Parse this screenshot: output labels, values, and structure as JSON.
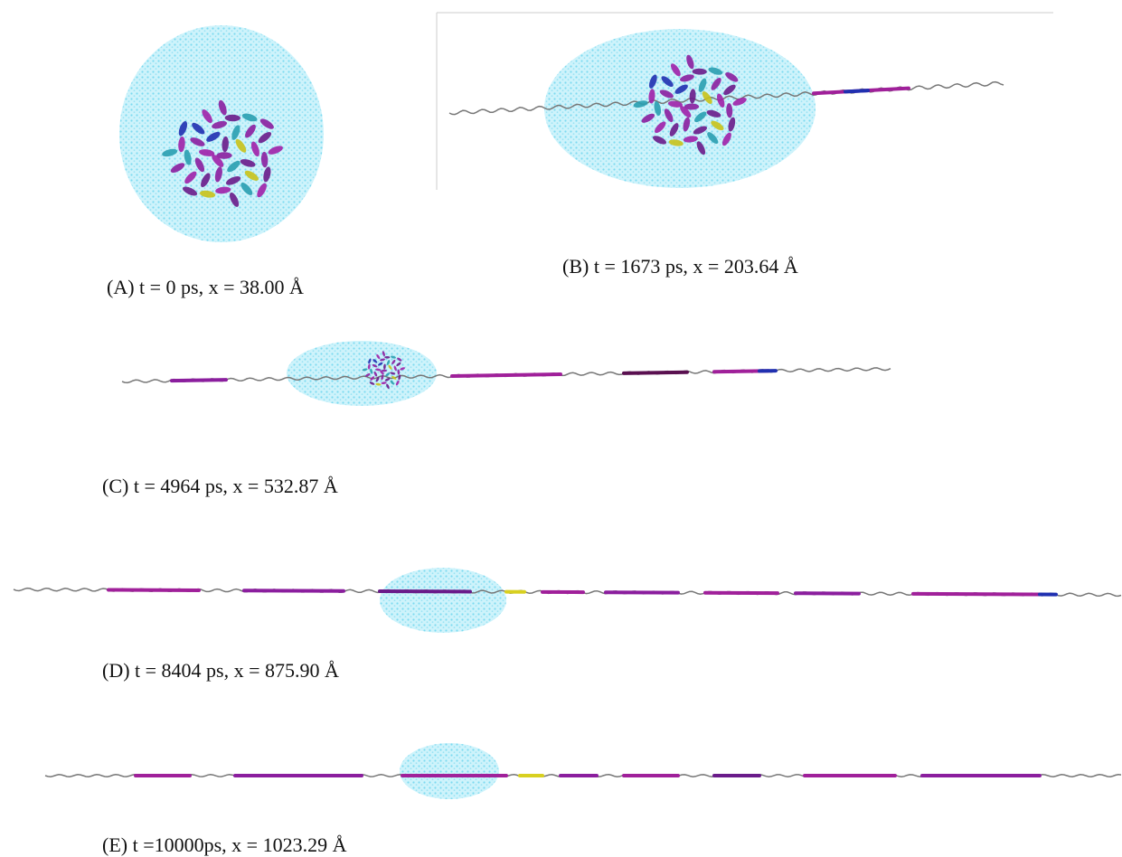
{
  "panels": [
    {
      "caption": "(A) t = 0 ps, x = 38.00 Å"
    },
    {
      "caption": "(B) t = 1673 ps, x = 203.64 Å"
    },
    {
      "caption": "(C) t = 4964 ps, x = 532.87 Å"
    },
    {
      "caption": "(D) t = 8404 ps, x = 875.90 Å"
    },
    {
      "caption": "(E) t =10000ps, x = 1023.29 Å"
    }
  ]
}
